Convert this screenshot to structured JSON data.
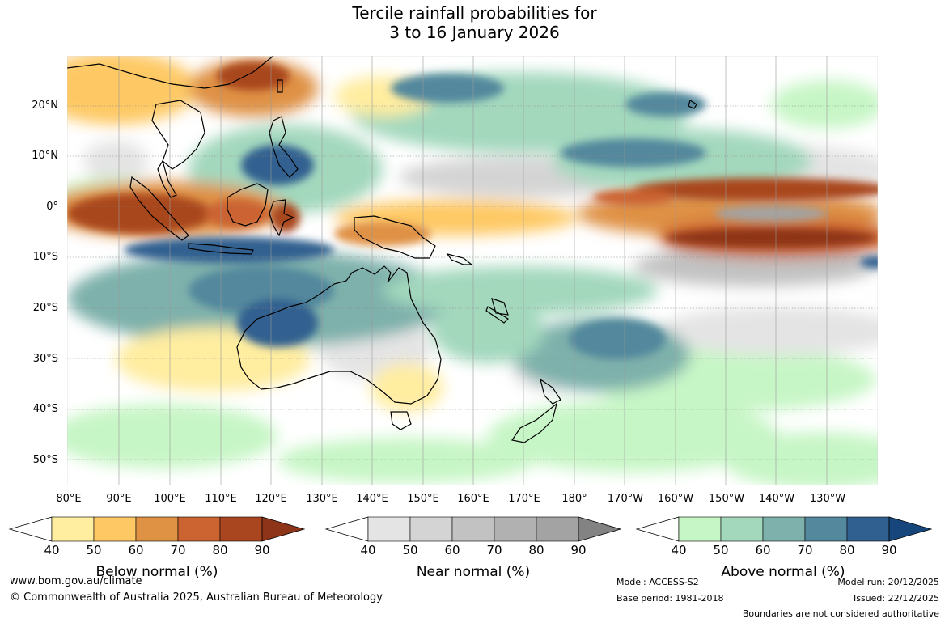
{
  "title": {
    "line1": "Tercile rainfall probabilities for",
    "line2": "3 to 16 January 2026"
  },
  "lat_labels": [
    "20°N",
    "10°N",
    "0°",
    "10°S",
    "20°S",
    "30°S",
    "40°S",
    "50°S"
  ],
  "lon_labels": [
    "80°E",
    "90°E",
    "100°E",
    "110°E",
    "120°E",
    "130°E",
    "140°E",
    "150°E",
    "160°E",
    "170°E",
    "180°",
    "170°W",
    "160°W",
    "150°W",
    "140°W",
    "130°W"
  ],
  "colorbars": {
    "below": {
      "label": "Below normal (%)",
      "ticks": [
        "40",
        "50",
        "60",
        "70",
        "80",
        "90"
      ],
      "colors": [
        "#ffeda0",
        "#fec965",
        "#df9144",
        "#cb6431",
        "#a9461f",
        "#8e3419"
      ]
    },
    "near": {
      "label": "Near normal (%)",
      "ticks": [
        "40",
        "50",
        "60",
        "70",
        "80",
        "90"
      ],
      "colors": [
        "#e4e4e4",
        "#d4d4d4",
        "#c2c2c2",
        "#b1b1b1",
        "#a3a3a3",
        "#838383"
      ]
    },
    "above": {
      "label": "Above normal (%)",
      "ticks": [
        "40",
        "50",
        "60",
        "70",
        "80",
        "90"
      ],
      "colors": [
        "#c7f6c6",
        "#a3d8bd",
        "#7eb1ab",
        "#53889d",
        "#306090",
        "#17467c"
      ]
    }
  },
  "footer": {
    "website": "www.bom.gov.au/climate",
    "copyright": "© Commonwealth of Australia 2025, Australian Bureau of Meteorology",
    "model": "Model: ACCESS-S2",
    "base_period": "Base period: 1981-2018",
    "model_run": "Model run: 20/12/2025",
    "issued": "Issued: 22/12/2025",
    "boundaries": "Boundaries are not considered authoritative"
  }
}
